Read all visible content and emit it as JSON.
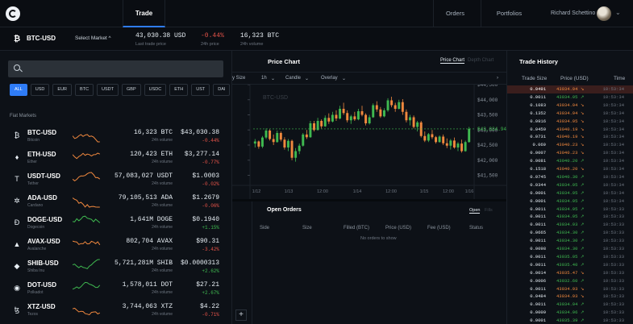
{
  "nav": {
    "trade": "Trade",
    "orders": "Orders",
    "portfolios": "Portfolios",
    "user_name": "Richard Schettino"
  },
  "market_bar": {
    "symbol": "₿",
    "market": "BTC-USD",
    "select_market": "Select Market ^",
    "last_trade_price": "43,030.38 USD",
    "last_trade_price_label": "Last trade price",
    "change_24h": "-0.44%",
    "change_24h_label": "24h price",
    "volume_24h": "16,323 BTC",
    "volume_24h_label": "24h volume"
  },
  "left_panel": {
    "search_placeholder": "",
    "chips": [
      "ALL",
      "USD",
      "EUR",
      "BTC",
      "USDT",
      "GBP",
      "USDC",
      "ETH",
      "UST",
      "DAI"
    ],
    "section_label": "Fiat Markets",
    "markets": [
      {
        "icon": "₿",
        "symbol": "BTC-USD",
        "name": "Bitcoin",
        "volume": "16,323 BTC",
        "volume_label": "24h volume",
        "price": "$43,030.38",
        "change": "-0.44%",
        "positive": false
      },
      {
        "icon": "♦",
        "symbol": "ETH-USD",
        "name": "Ether",
        "volume": "120,423 ETH",
        "volume_label": "24h volume",
        "price": "$3,277.14",
        "change": "-0.77%",
        "positive": false
      },
      {
        "icon": "T",
        "symbol": "USDT-USD",
        "name": "Tether",
        "volume": "57,083,027 USDT",
        "volume_label": "24h volume",
        "price": "$1.0003",
        "change": "-0.02%",
        "positive": false
      },
      {
        "icon": "✲",
        "symbol": "ADA-USD",
        "name": "Cardano",
        "volume": "79,105,513 ADA",
        "volume_label": "24h volume",
        "price": "$1.2679",
        "change": "-0.06%",
        "positive": false
      },
      {
        "icon": "Đ",
        "symbol": "DOGE-USD",
        "name": "Dogecoin",
        "volume": "1,641M DOGE",
        "volume_label": "24h volume",
        "price": "$0.1940",
        "change": "+1.15%",
        "positive": true
      },
      {
        "icon": "▲",
        "symbol": "AVAX-USD",
        "name": "Avalanche",
        "volume": "802,704 AVAX",
        "volume_label": "24h volume",
        "price": "$90.31",
        "change": "-3.42%",
        "positive": false
      },
      {
        "icon": "◆",
        "symbol": "SHIB-USD",
        "name": "Shiba Inu",
        "volume": "5,721,281M SHIB",
        "volume_label": "24h volume",
        "price": "$0.0000313",
        "change": "+2.62%",
        "positive": true
      },
      {
        "icon": "◉",
        "symbol": "DOT-USD",
        "name": "Polkadot",
        "volume": "1,578,011 DOT",
        "volume_label": "24h volume",
        "price": "$27.21",
        "change": "+2.67%",
        "positive": true
      },
      {
        "icon": "ꜩ",
        "symbol": "XTZ-USD",
        "name": "Tezos",
        "volume": "3,744,063 XTZ",
        "volume_label": "24h volume",
        "price": "$4.22",
        "change": "-0.71%",
        "positive": false
      }
    ]
  },
  "chart": {
    "title": "Price Chart",
    "toggle_price": "Price Chart",
    "toggle_depth": "Depth Chart",
    "toolbar": {
      "bar_size": "y Size",
      "interval": "1h",
      "style": "Candle",
      "overlay": "Overlay"
    },
    "watermark": "BTC-USD",
    "y_ticks": [
      "$44,500",
      "$44,000",
      "$43,500",
      "$43,000",
      "$42,500",
      "$42,000",
      "$41,500"
    ],
    "current_price": "$43,034.94",
    "x_ticks": [
      "1/12",
      "1/13",
      "12:00",
      "1/14",
      "12:00",
      "1/15",
      "12:00",
      "1/16"
    ]
  },
  "chart_data": {
    "type": "candlestick",
    "title": "Price Chart",
    "ylim": [
      41300,
      44500
    ],
    "candles": [
      [
        42550,
        42700,
        42420,
        42620
      ],
      [
        42620,
        42650,
        42380,
        42450
      ],
      [
        42450,
        42800,
        42400,
        42750
      ],
      [
        42750,
        43050,
        42700,
        42980
      ],
      [
        42980,
        43020,
        42650,
        42700
      ],
      [
        42700,
        42850,
        42500,
        42600
      ],
      [
        42600,
        42980,
        42580,
        42900
      ],
      [
        42900,
        42950,
        42620,
        42680
      ],
      [
        42680,
        42760,
        42350,
        42420
      ],
      [
        42420,
        42700,
        42300,
        42640
      ],
      [
        42640,
        42680,
        42000,
        42080
      ],
      [
        42080,
        42400,
        41950,
        42300
      ],
      [
        42300,
        42550,
        42200,
        42480
      ],
      [
        42480,
        42900,
        42450,
        42850
      ],
      [
        42850,
        43000,
        42700,
        42760
      ],
      [
        42760,
        43300,
        42740,
        43220
      ],
      [
        43220,
        43300,
        42950,
        43000
      ],
      [
        43000,
        43400,
        42980,
        43300
      ],
      [
        43300,
        43350,
        43050,
        43120
      ],
      [
        43120,
        43480,
        43100,
        43400
      ],
      [
        43400,
        43550,
        43200,
        43280
      ],
      [
        43280,
        43600,
        43250,
        43500
      ],
      [
        43500,
        43650,
        43300,
        43380
      ],
      [
        43380,
        43800,
        43350,
        43700
      ],
      [
        43700,
        43900,
        43500,
        43560
      ],
      [
        43560,
        43650,
        43250,
        43320
      ],
      [
        43320,
        43500,
        43200,
        43450
      ],
      [
        43450,
        43600,
        43300,
        43350
      ],
      [
        43350,
        43700,
        43320,
        43620
      ],
      [
        43620,
        43800,
        43450,
        43500
      ],
      [
        43500,
        43550,
        43150,
        43220
      ],
      [
        43220,
        43500,
        43180,
        43420
      ],
      [
        43420,
        43880,
        43400,
        43820
      ],
      [
        43820,
        43950,
        43600,
        43680
      ],
      [
        43680,
        43760,
        43400,
        43450
      ],
      [
        43450,
        43720,
        43420,
        43650
      ],
      [
        43650,
        44050,
        43600,
        43980
      ],
      [
        43980,
        44100,
        43750,
        43820
      ],
      [
        43820,
        43900,
        43600,
        43700
      ],
      [
        43700,
        44000,
        43680,
        43920
      ],
      [
        43920,
        44020,
        43500,
        43600
      ],
      [
        43600,
        43680,
        43250,
        43320
      ],
      [
        43320,
        43500,
        43150,
        43420
      ],
      [
        43420,
        43480,
        43050,
        43100
      ],
      [
        43100,
        43300,
        42950,
        43250
      ],
      [
        43250,
        43300,
        42750,
        42800
      ],
      [
        42800,
        42950,
        42600,
        42650
      ],
      [
        42650,
        42900,
        42600,
        42860
      ],
      [
        42860,
        43000,
        42700,
        42760
      ],
      [
        42760,
        42800,
        42550,
        42600
      ],
      [
        42600,
        42820,
        42580,
        42780
      ],
      [
        42780,
        42850,
        42500,
        42560
      ],
      [
        42560,
        42720,
        42400,
        42480
      ],
      [
        42480,
        42700,
        42350,
        42650
      ],
      [
        42650,
        42750,
        42380,
        42420
      ],
      [
        42420,
        42600,
        42300,
        42550
      ],
      [
        42550,
        42680,
        42250,
        42300
      ],
      [
        42300,
        42650,
        42280,
        42600
      ],
      [
        42600,
        43100,
        42580,
        43035
      ]
    ]
  },
  "orders": {
    "title": "Open Orders",
    "tab_open": "Open",
    "tab_fills": "Fills",
    "columns": [
      "Side",
      "Size",
      "Filled (BTC)",
      "Price (USD)",
      "Fee (USD)",
      "Status"
    ],
    "empty": "No orders to show"
  },
  "trade_history": {
    "title": "Trade History",
    "columns": [
      "Trade Size",
      "Price (USD)",
      "Time"
    ],
    "rows": [
      {
        "size": "0.0491",
        "price": "43034.94 ↘",
        "time": "10:53:34",
        "dir": "down",
        "highlight": true
      },
      {
        "size": "0.0011",
        "price": "43034.95 ↗",
        "time": "10:53:34",
        "dir": "up"
      },
      {
        "size": "0.1083",
        "price": "43034.94 ↘",
        "time": "10:53:34",
        "dir": "down"
      },
      {
        "size": "0.1352",
        "price": "43034.94 ↘",
        "time": "10:53:34",
        "dir": "down"
      },
      {
        "size": "0.0916",
        "price": "43034.95 ↘",
        "time": "10:53:34",
        "dir": "down"
      },
      {
        "size": "0.0459",
        "price": "43040.19 ↘",
        "time": "10:53:34",
        "dir": "down"
      },
      {
        "size": "0.0731",
        "price": "43040.19 ↘",
        "time": "10:53:34",
        "dir": "down"
      },
      {
        "size": "0.069",
        "price": "43040.23 ↘",
        "time": "10:53:34",
        "dir": "down"
      },
      {
        "size": "0.0007",
        "price": "43040.23 ↘",
        "time": "10:53:34",
        "dir": "down"
      },
      {
        "size": "0.0081",
        "price": "43040.20 ↗",
        "time": "10:53:34",
        "dir": "up"
      },
      {
        "size": "0.1518",
        "price": "43040.20 ↘",
        "time": "10:53:34",
        "dir": "down"
      },
      {
        "size": "0.0745",
        "price": "43040.30 ↗",
        "time": "10:53:34",
        "dir": "up"
      },
      {
        "size": "0.0344",
        "price": "43034.95 ↗",
        "time": "10:53:34",
        "dir": "up"
      },
      {
        "size": "0.0001",
        "price": "43034.95 ↗",
        "time": "10:53:34",
        "dir": "up"
      },
      {
        "size": "0.0001",
        "price": "43034.95 ↗",
        "time": "10:53:34",
        "dir": "up"
      },
      {
        "size": "0.0011",
        "price": "43034.95 ↗",
        "time": "10:53:33",
        "dir": "up"
      },
      {
        "size": "0.0011",
        "price": "43034.95 ↗",
        "time": "10:53:33",
        "dir": "up"
      },
      {
        "size": "0.0011",
        "price": "43034.93 ↗",
        "time": "10:53:33",
        "dir": "up"
      },
      {
        "size": "0.0665",
        "price": "43034.30 ↗",
        "time": "10:53:33",
        "dir": "up"
      },
      {
        "size": "0.0011",
        "price": "43034.30 ↗",
        "time": "10:53:33",
        "dir": "up"
      },
      {
        "size": "0.0098",
        "price": "43034.30 ↗",
        "time": "10:53:33",
        "dir": "up"
      },
      {
        "size": "0.0011",
        "price": "43035.05 ↗",
        "time": "10:53:33",
        "dir": "up"
      },
      {
        "size": "0.0011",
        "price": "43035.40 ↗",
        "time": "10:53:33",
        "dir": "up"
      },
      {
        "size": "0.0014",
        "price": "43035.47 ↘",
        "time": "10:53:33",
        "dir": "down"
      },
      {
        "size": "0.0006",
        "price": "43032.60 ↗",
        "time": "10:53:33",
        "dir": "up"
      },
      {
        "size": "0.0011",
        "price": "43034.93 ↘",
        "time": "10:53:33",
        "dir": "down"
      },
      {
        "size": "0.0484",
        "price": "43034.93 ↘",
        "time": "10:53:33",
        "dir": "down"
      },
      {
        "size": "0.0011",
        "price": "43034.94 ↗",
        "time": "10:53:33",
        "dir": "up"
      },
      {
        "size": "0.0009",
        "price": "43034.96 ↗",
        "time": "10:53:33",
        "dir": "up"
      },
      {
        "size": "0.0001",
        "price": "43035.39 ↗",
        "time": "10:53:33",
        "dir": "up"
      }
    ]
  },
  "colors": {
    "accent": "#2f7cf6",
    "up": "#3fb950",
    "down": "#f0883e",
    "neg": "#e55349"
  }
}
